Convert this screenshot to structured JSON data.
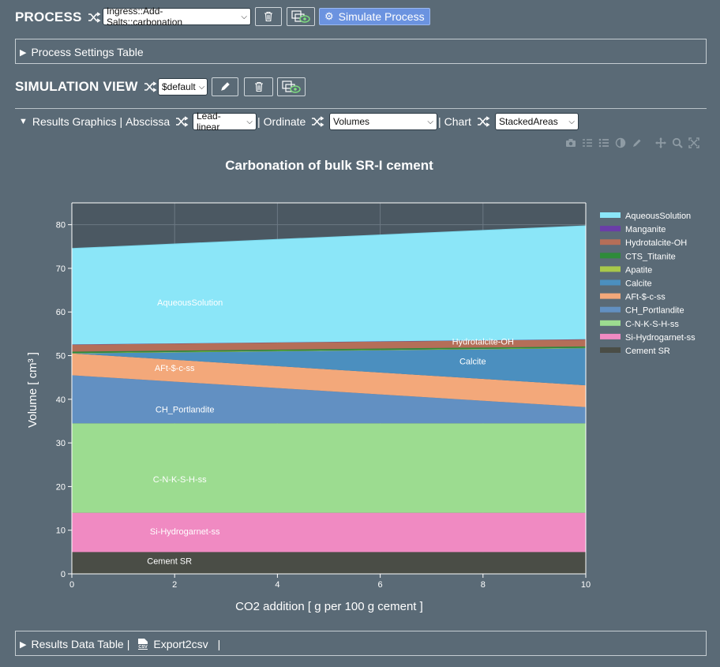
{
  "process": {
    "title": "PROCESS",
    "selected": "Ingress::Add-Salts::carbonation",
    "simulate_label": "Simulate Process"
  },
  "process_settings": {
    "label": "Process Settings Table"
  },
  "simulation_view": {
    "title": "SIMULATION VIEW",
    "selected": "$default"
  },
  "results_graphics": {
    "label": "Results Graphics",
    "abscissa_label": "Abscissa",
    "abscissa_value": "Lead-linear",
    "ordinate_label": "Ordinate",
    "ordinate_value": "Volumes",
    "chart_label": "Chart",
    "chart_value": "StackedAreas"
  },
  "results_data": {
    "label": "Results Data Table",
    "export_label": "Export2csv",
    "csv_badge": "CSV"
  },
  "icons": {
    "shuffle": "shuffle-icon",
    "trash": "trash-icon",
    "duplicate": "duplicate-view-icon",
    "edit": "pencil-icon",
    "simulate": "gear-icon",
    "toolbar": [
      "camera-icon",
      "compare-icon",
      "hover-list-icon",
      "contrast-icon",
      "pencil-icon",
      "pan-icon",
      "zoom-icon",
      "autoscale-icon"
    ]
  },
  "chart_data": {
    "type": "area",
    "title": "Carbonation of bulk SR-I cement",
    "xlabel": "CO2 addition [ g per 100 g cement ]",
    "ylabel": "Volume [ cm³ ]",
    "xlim": [
      0,
      10
    ],
    "ylim": [
      0,
      85
    ],
    "x_ticks": [
      0,
      2,
      4,
      6,
      8,
      10
    ],
    "y_ticks": [
      0,
      10,
      20,
      30,
      40,
      50,
      60,
      70,
      80
    ],
    "grid": true,
    "legend_position": "right",
    "x": [
      0,
      10
    ],
    "series": [
      {
        "name": "Cement SR",
        "values": [
          5.0,
          5.0
        ],
        "color": "#4a4d46",
        "label": "Cement SR",
        "label_pos": [
          1.9,
          2.3
        ]
      },
      {
        "name": "Si-Hydrogarnet-ss",
        "values": [
          9.0,
          9.0
        ],
        "color": "#f08ac2",
        "label": "Si-Hydrogarnet-ss",
        "label_pos": [
          2.2,
          9.0
        ]
      },
      {
        "name": "C-N-K-S-H-ss",
        "values": [
          20.5,
          20.5
        ],
        "color": "#9cdc90",
        "label": "C-N-K-S-H-ss",
        "label_pos": [
          2.1,
          21.0
        ]
      },
      {
        "name": "CH_Portlandite",
        "values": [
          11.0,
          3.7
        ],
        "color": "#6290c2",
        "label": "CH_Portlandite",
        "label_pos": [
          2.2,
          37.0
        ]
      },
      {
        "name": "AFt-$-c-ss",
        "values": [
          5.0,
          5.0
        ],
        "color": "#f3a87a",
        "label": "AFt-$-c-ss",
        "label_pos": [
          2.0,
          46.5
        ]
      },
      {
        "name": "Calcite",
        "values": [
          0.0,
          8.5
        ],
        "color": "#4b8fbf",
        "label": "Calcite",
        "label_pos": [
          7.8,
          48.0
        ]
      },
      {
        "name": "Apatite",
        "values": [
          0.1,
          0.1
        ],
        "color": "#a8c84a",
        "label": "",
        "label_pos": null
      },
      {
        "name": "CTS_Titanite",
        "values": [
          0.3,
          0.3
        ],
        "color": "#2e8b3a",
        "label": "",
        "label_pos": null
      },
      {
        "name": "Hydrotalcite-OH",
        "values": [
          1.6,
          1.6
        ],
        "color": "#b56e58",
        "label": "Hydrotalcite-OH",
        "label_pos": [
          8.0,
          52.5
        ]
      },
      {
        "name": "Manganite",
        "values": [
          0.05,
          0.05
        ],
        "color": "#6a3da8",
        "label": "",
        "label_pos": null
      },
      {
        "name": "AqueousSolution",
        "values": [
          22.0,
          26.0
        ],
        "color": "#8be6f8",
        "label": "AqueousSolution",
        "label_pos": [
          2.3,
          61.5
        ]
      }
    ],
    "legend_order": [
      "AqueousSolution",
      "Manganite",
      "Hydrotalcite-OH",
      "CTS_Titanite",
      "Apatite",
      "Calcite",
      "AFt-$-c-ss",
      "CH_Portlandite",
      "C-N-K-S-H-ss",
      "Si-Hydrogarnet-ss",
      "Cement SR"
    ]
  }
}
